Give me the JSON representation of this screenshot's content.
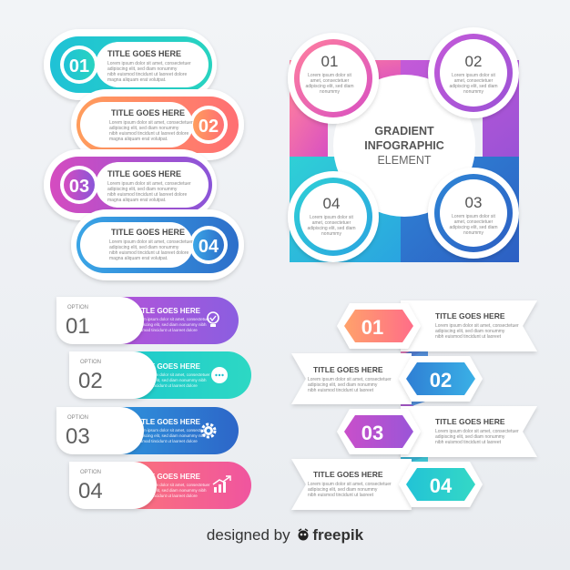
{
  "pills": [
    {
      "num": "01",
      "title": "TITLE GOES HERE",
      "lines": [
        "Lorem ipsum dolor sit amet, consectetuer",
        "adipiscing elit, sed diam nonummy",
        "nibh euismod tincidunt ut laoreet dolore",
        "magna aliquam erat volutpat."
      ]
    },
    {
      "num": "02",
      "title": "TITLE GOES HERE",
      "lines": [
        "Lorem ipsum dolor sit amet, consectetuer",
        "adipiscing elit, sed diam nonummy",
        "nibh euismod tincidunt ut laoreet dolore",
        "magna aliquam erat volutpat."
      ]
    },
    {
      "num": "03",
      "title": "TITLE GOES HERE",
      "lines": [
        "Lorem ipsum dolor sit amet, consectetuer",
        "adipiscing elit, sed diam nonummy",
        "nibh euismod tincidunt ut laoreet dolore",
        "magna aliquam erat volutpat."
      ]
    },
    {
      "num": "04",
      "title": "TITLE GOES HERE",
      "lines": [
        "Lorem ipsum dolor sit amet, consectetuer",
        "adipiscing elit, sed diam nonummy",
        "nibh euismod tincidunt ut laoreet dolore",
        "magna aliquam erat volutpat."
      ]
    }
  ],
  "circle": {
    "title_lines": [
      "GRADIENT",
      "INFOGRAPHIC",
      "ELEMENT"
    ],
    "items": [
      {
        "num": "01",
        "lines": [
          "Lorem ipsum dolor sit",
          "amet, consectetuer",
          "adipiscing elit, sed diam",
          "nonummy"
        ]
      },
      {
        "num": "02",
        "lines": [
          "Lorem ipsum dolor sit",
          "amet, consectetuer",
          "adipiscing elit, sed diam",
          "nonummy"
        ]
      },
      {
        "num": "04",
        "lines": [
          "Lorem ipsum dolor sit",
          "amet, consectetuer",
          "adipiscing elit, sed diam",
          "nonummy"
        ]
      },
      {
        "num": "03",
        "lines": [
          "Lorem ipsum dolor sit",
          "amet, consectetuer",
          "adipiscing elit, sed diam",
          "nonummy"
        ]
      }
    ]
  },
  "options": [
    {
      "label": "OPTION",
      "num": "01",
      "title": "TITLE GOES HERE",
      "icon": "lightbulb-icon",
      "lines": [
        "Lorem ipsum dolor sit amet, consectetuer",
        "adipiscing elit, sed diam nonummy nibh",
        "euismod tincidunt ut laoreet dolore"
      ]
    },
    {
      "label": "OPTION",
      "num": "02",
      "title": "TITLE GOES HERE",
      "icon": "chat-bubble-icon",
      "lines": [
        "Lorem ipsum dolor sit amet, consectetuer",
        "adipiscing elit, sed diam nonummy nibh",
        "euismod tincidunt ut laoreet dolore"
      ]
    },
    {
      "label": "OPTION",
      "num": "03",
      "title": "TITLE GOES HERE",
      "icon": "gear-icon",
      "lines": [
        "Lorem ipsum dolor sit amet, consectetuer",
        "adipiscing elit, sed diam nonummy nibh",
        "euismod tincidunt ut laoreet dolore"
      ]
    },
    {
      "label": "OPTION",
      "num": "04",
      "title": "TITLE GOES HERE",
      "icon": "growth-chart-icon",
      "lines": [
        "Lorem ipsum dolor sit amet, consectetuer",
        "adipiscing elit, sed diam nonummy nibh",
        "euismod tincidunt ut laoreet dolore"
      ]
    }
  ],
  "hexes": [
    {
      "num": "01",
      "title": "TITLE GOES HERE",
      "lines": [
        "Lorem ipsum dolor sit amet, consectetuer",
        "adipiscing elit, sed diam nonummy",
        "nibh euismod tincidunt ut laoreet"
      ]
    },
    {
      "num": "02",
      "title": "TITLE GOES HERE",
      "lines": [
        "Lorem ipsum dolor sit amet, consectetuer",
        "adipiscing elit, sed diam nonummy",
        "nibh euismod tincidunt ut laoreet"
      ]
    },
    {
      "num": "03",
      "title": "TITLE GOES HERE",
      "lines": [
        "Lorem ipsum dolor sit amet, consectetuer",
        "adipiscing elit, sed diam nonummy",
        "nibh euismod tincidunt ut laoreet"
      ]
    },
    {
      "num": "04",
      "title": "TITLE GOES HERE",
      "lines": [
        "Lorem ipsum dolor sit amet, consectetuer",
        "adipiscing elit, sed diam nonummy",
        "nibh euismod tincidunt ut laoreet"
      ]
    }
  ],
  "footer": {
    "prefix": "designed by",
    "brand": "freepik"
  },
  "colors": {
    "cyan": "#26c6da",
    "teal": "#1fb5c9",
    "orange": "#ff8a65",
    "pink": "#f06292",
    "magenta": "#c447c9",
    "purple": "#8e5ad6",
    "blue": "#2f7fd1",
    "lightblue": "#4fb3e8"
  }
}
